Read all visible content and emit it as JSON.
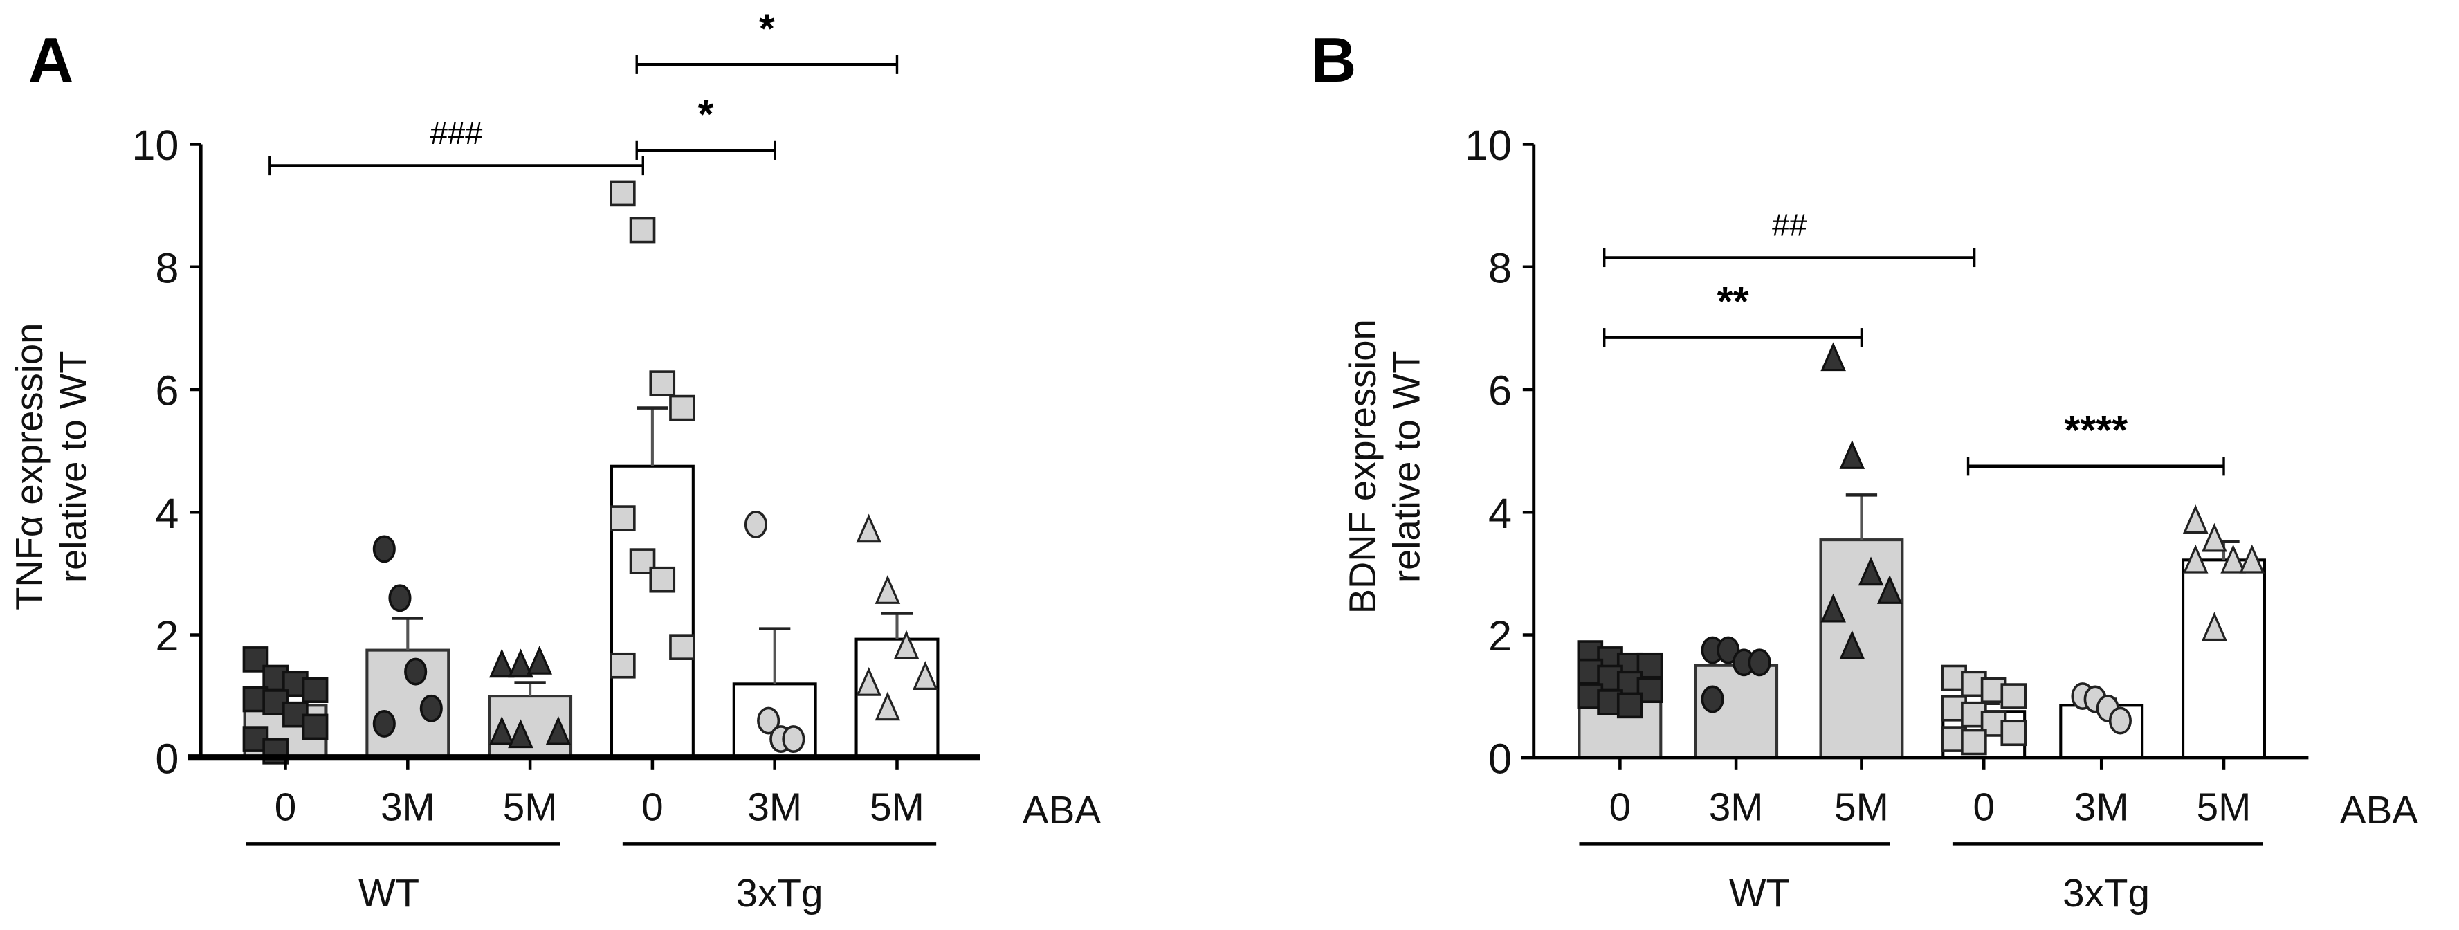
{
  "chart_data": [
    {
      "panel": "A",
      "type": "bar",
      "title": "",
      "ylabel_line1": "TNFα expression",
      "ylabel_line2": "relative to WT",
      "xlabel": "ABA",
      "ylim": [
        0,
        10
      ],
      "yticks": [
        0,
        2,
        4,
        6,
        8,
        10
      ],
      "categories": [
        "0",
        "3M",
        "5M",
        "0",
        "3M",
        "5M"
      ],
      "groups": [
        {
          "label": "WT",
          "indices": [
            0,
            1,
            2
          ]
        },
        {
          "label": "3xTg",
          "indices": [
            3,
            4,
            5
          ]
        }
      ],
      "bars": [
        {
          "genotype": "WT",
          "aba": "0",
          "mean": 0.85,
          "sem": 0.2,
          "fill": "#d3d3d3",
          "marker": "square",
          "marker_fill": "#333333",
          "points": [
            1.6,
            1.3,
            1.2,
            1.1,
            0.95,
            0.9,
            0.7,
            0.5,
            0.3,
            0.1
          ]
        },
        {
          "genotype": "WT",
          "aba": "3M",
          "mean": 1.75,
          "sem": 0.52,
          "fill": "#d3d3d3",
          "marker": "circle",
          "marker_fill": "#333333",
          "points": [
            3.4,
            2.6,
            1.4,
            0.8,
            0.55
          ]
        },
        {
          "genotype": "WT",
          "aba": "5M",
          "mean": 1.0,
          "sem": 0.22,
          "fill": "#d3d3d3",
          "marker": "triangle",
          "marker_fill": "#333333",
          "points": [
            1.5,
            1.5,
            1.55,
            0.4,
            0.4,
            0.35
          ]
        },
        {
          "genotype": "3xTg",
          "aba": "0",
          "mean": 4.75,
          "sem": 0.95,
          "fill": "#ffffff",
          "marker": "square",
          "marker_fill": "#d3d3d3",
          "points": [
            9.2,
            8.6,
            6.1,
            5.7,
            3.9,
            3.2,
            2.9,
            1.8,
            1.5
          ]
        },
        {
          "genotype": "3xTg",
          "aba": "3M",
          "mean": 1.2,
          "sem": 0.9,
          "fill": "#ffffff",
          "marker": "circle",
          "marker_fill": "#d3d3d3",
          "points": [
            3.8,
            0.6,
            0.3,
            0.3
          ]
        },
        {
          "genotype": "3xTg",
          "aba": "5M",
          "mean": 1.93,
          "sem": 0.42,
          "fill": "#ffffff",
          "marker": "triangle",
          "marker_fill": "#d3d3d3",
          "points": [
            3.7,
            2.7,
            1.8,
            1.3,
            1.2,
            0.8
          ]
        }
      ],
      "annotations": [
        {
          "from": 0,
          "to": 3,
          "y": 9.65,
          "label": "###",
          "kind": "hash"
        },
        {
          "from": 3,
          "to": 4,
          "y": 9.9,
          "label": "*",
          "kind": "star"
        },
        {
          "from": 3,
          "to": 5,
          "y": 11.3,
          "label": "*",
          "kind": "star"
        }
      ]
    },
    {
      "panel": "B",
      "type": "bar",
      "title": "",
      "ylabel_line1": "BDNF expression",
      "ylabel_line2": "relative to WT",
      "xlabel": "ABA",
      "ylim": [
        0,
        10
      ],
      "yticks": [
        0,
        2,
        4,
        6,
        8,
        10
      ],
      "categories": [
        "0",
        "3M",
        "5M",
        "0",
        "3M",
        "5M"
      ],
      "groups": [
        {
          "label": "WT",
          "indices": [
            0,
            1,
            2
          ]
        },
        {
          "label": "3xTg",
          "indices": [
            3,
            4,
            5
          ]
        }
      ],
      "bars": [
        {
          "genotype": "WT",
          "aba": "0",
          "mean": 1.3,
          "sem": 0.1,
          "fill": "#d3d3d3",
          "marker": "square",
          "marker_fill": "#333333",
          "points": [
            1.7,
            1.6,
            1.5,
            1.5,
            1.4,
            1.3,
            1.2,
            1.1,
            1.0,
            0.9,
            0.85
          ]
        },
        {
          "genotype": "WT",
          "aba": "3M",
          "mean": 1.5,
          "sem": 0.15,
          "fill": "#d3d3d3",
          "marker": "circle",
          "marker_fill": "#333333",
          "points": [
            1.75,
            1.75,
            1.55,
            1.55,
            0.95
          ]
        },
        {
          "genotype": "WT",
          "aba": "5M",
          "mean": 3.55,
          "sem": 0.73,
          "fill": "#d3d3d3",
          "marker": "triangle",
          "marker_fill": "#333333",
          "points": [
            6.5,
            4.9,
            3.0,
            2.7,
            2.4,
            1.8
          ]
        },
        {
          "genotype": "3xTg",
          "aba": "0",
          "mean": 0.75,
          "sem": 0.13,
          "fill": "#ffffff",
          "marker": "square",
          "marker_fill": "#d3d3d3",
          "points": [
            1.3,
            1.2,
            1.1,
            1.0,
            0.8,
            0.7,
            0.55,
            0.4,
            0.3,
            0.25
          ]
        },
        {
          "genotype": "3xTg",
          "aba": "3M",
          "mean": 0.85,
          "sem": 0.1,
          "fill": "#ffffff",
          "marker": "circle",
          "marker_fill": "#d3d3d3",
          "points": [
            1.0,
            0.95,
            0.8,
            0.6
          ]
        },
        {
          "genotype": "3xTg",
          "aba": "5M",
          "mean": 3.22,
          "sem": 0.3,
          "fill": "#ffffff",
          "marker": "triangle",
          "marker_fill": "#d3d3d3",
          "points": [
            3.85,
            3.55,
            3.2,
            3.2,
            3.2,
            2.1
          ]
        }
      ],
      "annotations": [
        {
          "from": 0,
          "to": 3,
          "y": 8.15,
          "label": "##",
          "kind": "hash"
        },
        {
          "from": 0,
          "to": 2,
          "y": 6.85,
          "label": "**",
          "kind": "star"
        },
        {
          "from": 3,
          "to": 5,
          "y": 4.75,
          "label": "****",
          "kind": "star"
        }
      ]
    }
  ],
  "panels": {
    "A": {
      "letter": "A"
    },
    "B": {
      "letter": "B"
    }
  }
}
